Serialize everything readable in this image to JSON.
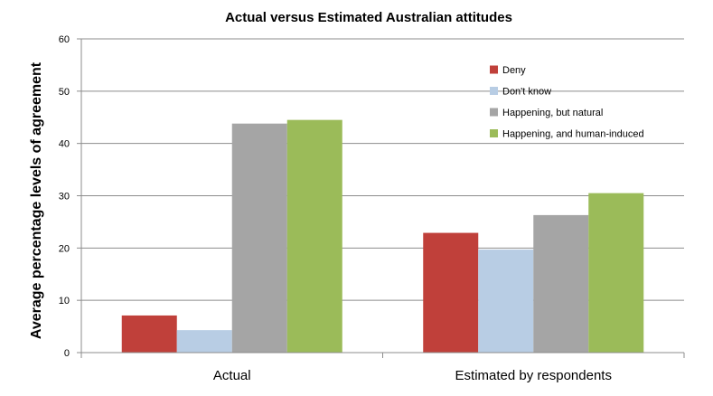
{
  "chart_data": {
    "type": "bar",
    "title": "Actual  versus Estimated Australian attitudes",
    "xlabel": "",
    "ylabel": "Average percentage levels of agreement",
    "categories": [
      "Actual",
      "Estimated by respondents"
    ],
    "ylim": [
      0,
      60
    ],
    "yticks": [
      0,
      10,
      20,
      30,
      40,
      50,
      60
    ],
    "grid": true,
    "legend_position": "top-right",
    "series": [
      {
        "name": "Deny",
        "color": "#c0403a",
        "values": [
          7.1,
          22.9
        ]
      },
      {
        "name": "Don't know",
        "color": "#b8cde4",
        "values": [
          4.3,
          19.7
        ]
      },
      {
        "name": "Happening, but natural",
        "color": "#a5a5a5",
        "values": [
          43.8,
          26.3
        ]
      },
      {
        "name": "Happening, and human-induced",
        "color": "#9bbb59",
        "values": [
          44.5,
          30.5
        ]
      }
    ]
  }
}
